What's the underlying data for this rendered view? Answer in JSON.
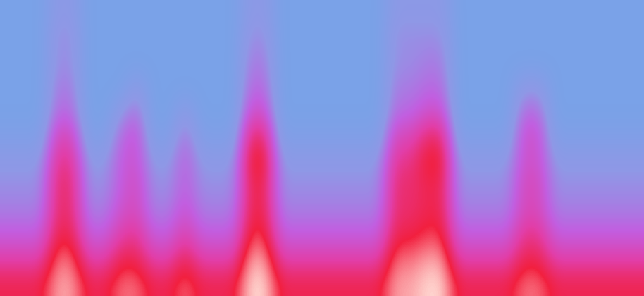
{
  "chart_data": {
    "type": "heatmap",
    "tick_labels": false,
    "grid": false,
    "cells": [
      [
        1,
        1,
        1,
        2.5,
        2.5,
        1,
        1,
        1,
        1,
        1,
        1,
        1,
        1,
        1,
        1,
        2.5,
        2.5,
        1,
        1,
        1,
        1,
        1,
        1,
        1,
        2.5,
        2.5,
        2.5,
        2.5,
        1,
        1,
        1,
        1,
        1,
        1,
        1,
        1,
        1,
        1,
        1,
        1
      ],
      [
        1,
        1,
        1,
        3,
        3,
        1,
        1,
        1,
        1,
        1,
        1,
        1,
        1,
        1,
        1,
        3,
        3,
        1,
        1,
        1,
        1,
        1,
        1,
        1,
        3,
        3,
        3,
        3,
        1,
        1,
        1,
        1,
        1,
        1,
        1,
        1,
        1,
        1,
        1,
        1
      ],
      [
        1,
        1,
        1,
        3,
        3,
        1,
        1,
        1,
        1,
        1,
        1,
        1,
        1,
        1,
        1,
        3.5,
        3.5,
        1,
        1,
        1,
        1,
        1,
        1,
        1,
        3,
        3,
        3.5,
        3.5,
        1,
        1,
        1,
        1,
        1,
        1,
        1,
        1,
        1,
        1,
        1,
        1
      ],
      [
        1,
        1,
        1,
        3.5,
        3.5,
        1,
        1,
        1,
        2.5,
        1,
        1,
        1,
        1,
        1,
        1,
        4,
        4,
        1,
        1,
        1,
        1,
        1,
        1,
        1,
        3.5,
        3.5,
        4,
        4,
        1,
        1,
        1,
        1,
        2.5,
        2.5,
        1,
        1,
        1,
        1,
        1,
        1
      ],
      [
        1,
        1,
        1,
        4,
        4,
        1,
        1,
        2.5,
        4,
        1,
        1,
        2.5,
        1,
        1,
        1,
        5,
        5,
        1,
        1,
        1,
        1,
        1,
        1,
        1,
        4,
        4,
        5,
        5,
        1,
        1,
        1,
        1,
        4,
        4,
        1,
        1,
        1,
        1,
        1,
        1
      ],
      [
        1.5,
        1.5,
        1.5,
        5.5,
        5.5,
        1.5,
        1.5,
        4,
        5,
        1.5,
        1.5,
        4,
        1.5,
        1.5,
        1.5,
        7,
        7,
        1.5,
        1.5,
        1.5,
        1.5,
        1.5,
        1.5,
        1.5,
        5.5,
        5.5,
        7,
        7,
        1.5,
        1.5,
        1.5,
        1.5,
        5,
        5,
        1.5,
        1.5,
        1.5,
        1.5,
        1.5,
        1.5
      ],
      [
        2.5,
        2.5,
        2.5,
        6.5,
        6.5,
        2.5,
        2.5,
        4.5,
        5,
        2.5,
        2.5,
        4.5,
        2.5,
        2.5,
        2.5,
        8,
        8,
        2.5,
        2.5,
        2.5,
        2.5,
        2.5,
        2.5,
        2.5,
        6.5,
        6.5,
        8,
        8,
        2.5,
        2.5,
        2.5,
        2.5,
        5,
        5,
        2.5,
        2.5,
        2.5,
        2.5,
        2.5,
        2.5
      ],
      [
        3,
        3,
        3,
        7,
        7,
        3,
        3,
        4.5,
        5.5,
        3,
        3,
        4.5,
        3,
        3,
        3,
        7.5,
        7.5,
        3,
        3,
        3,
        3,
        3,
        3,
        3,
        7,
        7,
        7.5,
        7.5,
        3,
        3,
        3,
        3,
        5.5,
        5.5,
        3,
        3,
        3,
        3,
        3,
        3
      ],
      [
        3.5,
        3.5,
        3.5,
        7,
        7,
        3.5,
        3.5,
        5,
        5.5,
        3.5,
        3.5,
        5,
        3.5,
        3.5,
        3.5,
        7.5,
        7.5,
        3.5,
        3.5,
        3.5,
        3.5,
        3.5,
        3.5,
        3.5,
        7,
        7,
        7.5,
        7.5,
        3.5,
        3.5,
        3.5,
        3.5,
        5.5,
        5.5,
        3.5,
        3.5,
        3.5,
        3.5,
        3.5,
        3.5
      ],
      [
        4.5,
        4.5,
        4.5,
        7.5,
        7.5,
        4.5,
        4.5,
        6,
        6.5,
        4.5,
        4.5,
        6,
        4.5,
        4.5,
        4.5,
        8,
        8,
        4.5,
        4.5,
        4.5,
        4.5,
        4.5,
        4.5,
        4.5,
        7.5,
        7.5,
        8,
        8,
        4.5,
        4.5,
        4.5,
        4.5,
        6.5,
        6.5,
        4.5,
        4.5,
        4.5,
        4.5,
        4.5,
        4.5
      ],
      [
        6,
        6,
        6,
        8.5,
        8.5,
        6,
        6,
        7.5,
        7.5,
        6,
        6,
        7.5,
        6,
        6,
        6,
        9,
        9,
        6,
        6,
        6,
        6,
        6,
        6,
        6,
        8.5,
        8.5,
        9,
        9,
        6,
        6,
        6,
        6,
        7.5,
        7.5,
        6,
        6,
        6,
        6,
        6,
        6
      ],
      [
        7.5,
        7.5,
        7.5,
        9,
        9,
        7.5,
        7.5,
        8.5,
        8.5,
        7.5,
        7.5,
        8.5,
        7.5,
        7.5,
        7.5,
        9.5,
        9.5,
        7.5,
        7.5,
        7.5,
        7.5,
        7.5,
        7.5,
        7.5,
        9,
        9,
        9.5,
        9.5,
        7.5,
        7.5,
        7.5,
        7.5,
        8.5,
        8.5,
        7.5,
        7.5,
        7.5,
        7.5,
        7.5,
        7.5
      ]
    ]
  }
}
